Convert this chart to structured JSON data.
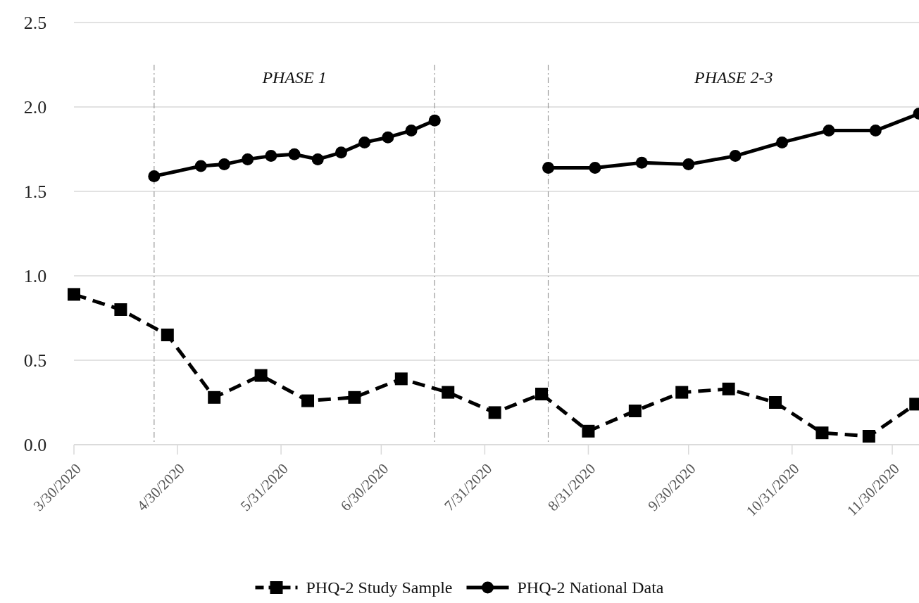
{
  "chart_data": {
    "type": "line",
    "xlim": [
      "2020-03-30",
      "2020-12-08"
    ],
    "xticks": [
      {
        "value": "2020-03-30",
        "label": "3/30/2020"
      },
      {
        "value": "2020-04-30",
        "label": "4/30/2020"
      },
      {
        "value": "2020-05-31",
        "label": "5/31/2020"
      },
      {
        "value": "2020-06-30",
        "label": "6/30/2020"
      },
      {
        "value": "2020-07-31",
        "label": "7/31/2020"
      },
      {
        "value": "2020-08-31",
        "label": "8/31/2020"
      },
      {
        "value": "2020-09-30",
        "label": "9/30/2020"
      },
      {
        "value": "2020-10-31",
        "label": "10/31/2020"
      },
      {
        "value": "2020-11-30",
        "label": "11/30/2020"
      }
    ],
    "ylim": [
      0,
      2.5
    ],
    "yticks": [
      {
        "value": 0,
        "label": "0.0"
      },
      {
        "value": 0.5,
        "label": "0.5"
      },
      {
        "value": 1,
        "label": "1.0"
      },
      {
        "value": 1.5,
        "label": "1.5"
      },
      {
        "value": 2,
        "label": "2.0"
      },
      {
        "value": 2.5,
        "label": "2.5"
      }
    ],
    "grid": "y",
    "legend": "bottom",
    "series": [
      {
        "name": "PHQ-2 Study Sample",
        "color": "#000000",
        "marker": "square",
        "line_style": "dashed",
        "x": [
          "2020-03-30",
          "2020-04-13",
          "2020-04-27",
          "2020-05-11",
          "2020-05-25",
          "2020-06-08",
          "2020-06-22",
          "2020-07-06",
          "2020-07-20",
          "2020-08-03",
          "2020-08-17",
          "2020-08-31",
          "2020-09-14",
          "2020-09-28",
          "2020-10-12",
          "2020-10-26",
          "2020-11-09",
          "2020-11-23",
          "2020-12-07"
        ],
        "values": [
          0.89,
          0.8,
          0.65,
          0.28,
          0.41,
          0.26,
          0.28,
          0.39,
          0.31,
          0.19,
          0.3,
          0.08,
          0.2,
          0.31,
          0.33,
          0.25,
          0.07,
          0.05,
          0.24
        ]
      },
      {
        "name": "PHQ-2 National Data",
        "color": "#000000",
        "marker": "circle",
        "line_style": "solid",
        "x": [
          "2020-04-23",
          "2020-05-07",
          "2020-05-14",
          "2020-05-21",
          "2020-05-28",
          "2020-06-04",
          "2020-06-11",
          "2020-06-18",
          "2020-06-25",
          "2020-07-02",
          "2020-07-09",
          "2020-07-16",
          "2020-08-01",
          "2020-08-19",
          "2020-09-02",
          "2020-09-16",
          "2020-09-30",
          "2020-10-14",
          "2020-10-28",
          "2020-11-11",
          "2020-11-25",
          "2020-12-08"
        ],
        "values": [
          1.59,
          1.65,
          1.66,
          1.69,
          1.71,
          1.72,
          1.69,
          1.73,
          1.79,
          1.82,
          1.86,
          1.92,
          null,
          1.64,
          1.64,
          1.67,
          1.66,
          1.71,
          1.79,
          1.86,
          1.86,
          1.96
        ]
      }
    ],
    "ref_lines": [
      {
        "axis": "x",
        "value": "2020-04-23",
        "color": "#999999",
        "line_style": "dashed"
      },
      {
        "axis": "x",
        "value": "2020-07-16",
        "color": "#999999",
        "line_style": "dashed"
      },
      {
        "axis": "x",
        "value": "2020-08-19",
        "color": "#999999",
        "line_style": "dashed"
      }
    ],
    "annotations": [
      "PHASE 1",
      "PHASE 2-3"
    ]
  }
}
